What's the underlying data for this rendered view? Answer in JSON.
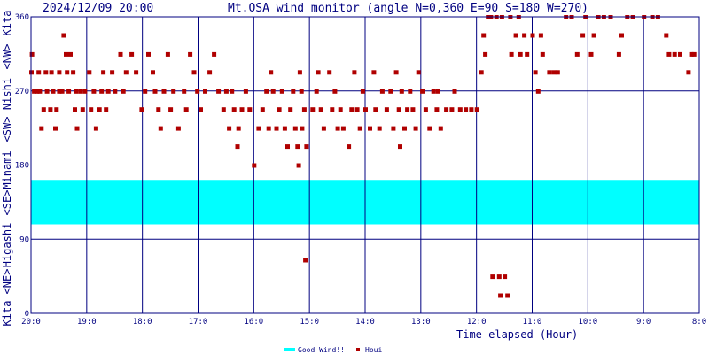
{
  "header": {
    "timestamp": "2024/12/09 20:00",
    "title": "Mt.OSA wind monitor (angle N=0,360 E=90 S=180 W=270)"
  },
  "colors": {
    "frame": "#000080",
    "band": "#00ffff",
    "marker": "#b00000",
    "text": "#000080"
  },
  "chart_data": {
    "type": "scatter",
    "title": "Mt.OSA wind monitor (angle N=0,360 E=90 S=180 W=270)",
    "xlabel": "Time elapsed (Hour)",
    "ylabel": "Kita <NE> Higashi <SE> Minami <SW> Nishi <NW> Kita",
    "xlim": [
      20,
      8
    ],
    "ylim": [
      0,
      360
    ],
    "x_ticks": [
      "20:0",
      "19:0",
      "18:0",
      "17:0",
      "16:0",
      "15:0",
      "14:0",
      "13:0",
      "12:0",
      "11:0",
      "10:0",
      "9:0",
      "8:0"
    ],
    "y_ticks": [
      "0",
      "90",
      "180",
      "270",
      "360"
    ],
    "y_side_labels": [
      "Kita",
      "<NE>",
      "Higashi",
      "<SE>",
      "Minami",
      "<SW>",
      "Nishi",
      "<NW>",
      "Kita"
    ],
    "grid": true,
    "good_wind_range": [
      108,
      162
    ],
    "legend": [
      "Good Wind!!",
      "Houi"
    ],
    "series": [
      {
        "name": "Houi",
        "points": [
          [
            20.0,
            293
          ],
          [
            19.99,
            315
          ],
          [
            19.95,
            270
          ],
          [
            19.9,
            270
          ],
          [
            19.87,
            293
          ],
          [
            19.85,
            270
          ],
          [
            19.82,
            225
          ],
          [
            19.78,
            248
          ],
          [
            19.74,
            293
          ],
          [
            19.72,
            270
          ],
          [
            19.66,
            248
          ],
          [
            19.64,
            293
          ],
          [
            19.61,
            270
          ],
          [
            19.57,
            225
          ],
          [
            19.55,
            248
          ],
          [
            19.5,
            270
          ],
          [
            19.5,
            293
          ],
          [
            19.45,
            270
          ],
          [
            19.42,
            338
          ],
          [
            19.38,
            315
          ],
          [
            19.36,
            293
          ],
          [
            19.33,
            270
          ],
          [
            19.3,
            315
          ],
          [
            19.25,
            293
          ],
          [
            19.22,
            248
          ],
          [
            19.2,
            270
          ],
          [
            19.18,
            225
          ],
          [
            19.12,
            270
          ],
          [
            19.08,
            248
          ],
          [
            19.04,
            270
          ],
          [
            18.96,
            293
          ],
          [
            18.93,
            248
          ],
          [
            18.88,
            270
          ],
          [
            18.84,
            225
          ],
          [
            18.78,
            248
          ],
          [
            18.74,
            270
          ],
          [
            18.71,
            293
          ],
          [
            18.66,
            248
          ],
          [
            18.62,
            270
          ],
          [
            18.55,
            293
          ],
          [
            18.5,
            270
          ],
          [
            18.4,
            315
          ],
          [
            18.35,
            270
          ],
          [
            18.3,
            293
          ],
          [
            18.2,
            315
          ],
          [
            18.12,
            293
          ],
          [
            18.02,
            248
          ],
          [
            17.96,
            270
          ],
          [
            17.9,
            315
          ],
          [
            17.82,
            293
          ],
          [
            17.78,
            270
          ],
          [
            17.72,
            248
          ],
          [
            17.68,
            225
          ],
          [
            17.62,
            270
          ],
          [
            17.55,
            315
          ],
          [
            17.5,
            248
          ],
          [
            17.45,
            270
          ],
          [
            17.36,
            225
          ],
          [
            17.26,
            270
          ],
          [
            17.22,
            248
          ],
          [
            17.15,
            315
          ],
          [
            17.08,
            293
          ],
          [
            17.02,
            270
          ],
          [
            16.96,
            248
          ],
          [
            16.88,
            270
          ],
          [
            16.8,
            293
          ],
          [
            16.72,
            315
          ],
          [
            16.64,
            270
          ],
          [
            16.55,
            248
          ],
          [
            16.5,
            270
          ],
          [
            16.45,
            225
          ],
          [
            16.4,
            270
          ],
          [
            16.36,
            248
          ],
          [
            16.3,
            203
          ],
          [
            16.28,
            225
          ],
          [
            16.22,
            248
          ],
          [
            16.15,
            270
          ],
          [
            16.08,
            248
          ],
          [
            16.0,
            180
          ],
          [
            15.92,
            225
          ],
          [
            15.85,
            248
          ],
          [
            15.78,
            270
          ],
          [
            15.74,
            225
          ],
          [
            15.7,
            293
          ],
          [
            15.66,
            270
          ],
          [
            15.6,
            225
          ],
          [
            15.55,
            248
          ],
          [
            15.5,
            270
          ],
          [
            15.45,
            225
          ],
          [
            15.4,
            203
          ],
          [
            15.35,
            248
          ],
          [
            15.3,
            270
          ],
          [
            15.26,
            225
          ],
          [
            15.22,
            203
          ],
          [
            15.2,
            180
          ],
          [
            15.18,
            293
          ],
          [
            15.15,
            270
          ],
          [
            15.14,
            225
          ],
          [
            15.1,
            248
          ],
          [
            15.08,
            65
          ],
          [
            15.06,
            203
          ],
          [
            14.95,
            248
          ],
          [
            14.88,
            270
          ],
          [
            14.85,
            293
          ],
          [
            14.8,
            248
          ],
          [
            14.75,
            225
          ],
          [
            14.65,
            293
          ],
          [
            14.6,
            248
          ],
          [
            14.55,
            270
          ],
          [
            14.5,
            225
          ],
          [
            14.45,
            248
          ],
          [
            14.4,
            225
          ],
          [
            14.3,
            203
          ],
          [
            14.25,
            248
          ],
          [
            14.2,
            293
          ],
          [
            14.15,
            248
          ],
          [
            14.1,
            225
          ],
          [
            14.05,
            270
          ],
          [
            14.0,
            248
          ],
          [
            13.92,
            225
          ],
          [
            13.85,
            293
          ],
          [
            13.82,
            248
          ],
          [
            13.75,
            225
          ],
          [
            13.7,
            270
          ],
          [
            13.62,
            248
          ],
          [
            13.55,
            270
          ],
          [
            13.5,
            225
          ],
          [
            13.45,
            293
          ],
          [
            13.4,
            248
          ],
          [
            13.38,
            203
          ],
          [
            13.35,
            270
          ],
          [
            13.3,
            225
          ],
          [
            13.25,
            248
          ],
          [
            13.2,
            270
          ],
          [
            13.15,
            248
          ],
          [
            13.1,
            225
          ],
          [
            13.05,
            293
          ],
          [
            12.98,
            270
          ],
          [
            12.92,
            248
          ],
          [
            12.85,
            225
          ],
          [
            12.78,
            270
          ],
          [
            12.72,
            248
          ],
          [
            12.7,
            270
          ],
          [
            12.65,
            225
          ],
          [
            12.55,
            248
          ],
          [
            12.45,
            248
          ],
          [
            12.4,
            270
          ],
          [
            12.3,
            248
          ],
          [
            12.2,
            248
          ],
          [
            12.1,
            248
          ],
          [
            12.0,
            248
          ],
          [
            11.92,
            293
          ],
          [
            11.88,
            338
          ],
          [
            11.85,
            315
          ],
          [
            11.8,
            360
          ],
          [
            11.75,
            360
          ],
          [
            11.72,
            45
          ],
          [
            11.65,
            360
          ],
          [
            11.6,
            45
          ],
          [
            11.58,
            22
          ],
          [
            11.55,
            360
          ],
          [
            11.5,
            45
          ],
          [
            11.45,
            22
          ],
          [
            11.4,
            360
          ],
          [
            11.38,
            315
          ],
          [
            11.3,
            338
          ],
          [
            11.25,
            360
          ],
          [
            11.22,
            315
          ],
          [
            11.15,
            338
          ],
          [
            11.1,
            315
          ],
          [
            11.0,
            338
          ],
          [
            10.95,
            293
          ],
          [
            10.9,
            270
          ],
          [
            10.85,
            338
          ],
          [
            10.82,
            315
          ],
          [
            10.7,
            293
          ],
          [
            10.62,
            293
          ],
          [
            10.55,
            293
          ],
          [
            10.4,
            360
          ],
          [
            10.3,
            360
          ],
          [
            10.2,
            315
          ],
          [
            10.1,
            338
          ],
          [
            10.05,
            360
          ],
          [
            9.95,
            315
          ],
          [
            9.9,
            338
          ],
          [
            9.82,
            360
          ],
          [
            9.72,
            360
          ],
          [
            9.6,
            360
          ],
          [
            9.45,
            315
          ],
          [
            9.4,
            338
          ],
          [
            9.3,
            360
          ],
          [
            9.2,
            360
          ],
          [
            9.0,
            360
          ],
          [
            8.85,
            360
          ],
          [
            8.75,
            360
          ],
          [
            8.6,
            338
          ],
          [
            8.55,
            315
          ],
          [
            8.45,
            315
          ],
          [
            8.35,
            315
          ],
          [
            8.2,
            293
          ],
          [
            8.15,
            315
          ],
          [
            8.1,
            315
          ]
        ]
      }
    ]
  }
}
